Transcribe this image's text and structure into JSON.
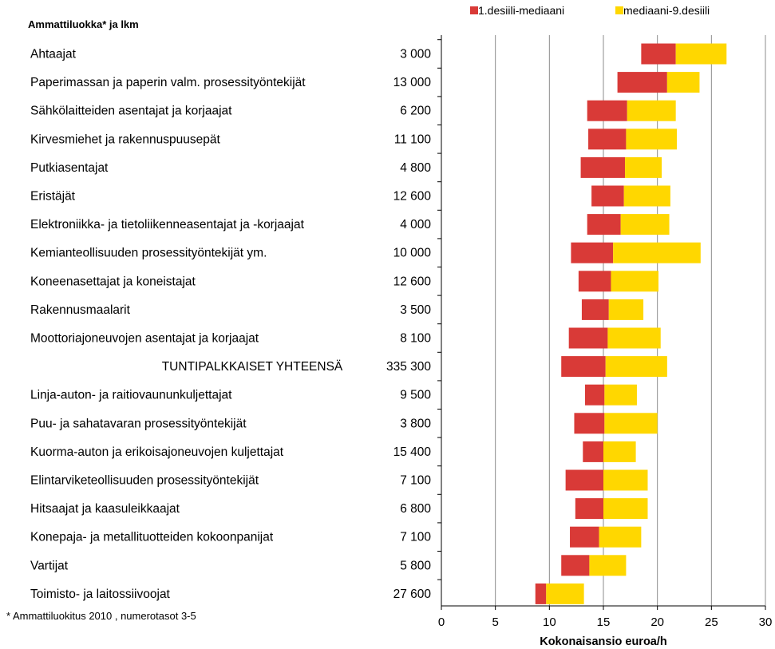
{
  "chart_data": {
    "type": "bar",
    "stacked": "floating-range",
    "header": "Ammattiluokka* ja  lkm",
    "xlabel": "Kokonaisansio euroa/h",
    "xlim": [
      0,
      30
    ],
    "xticks": [
      0,
      5,
      10,
      15,
      20,
      25,
      30
    ],
    "grid": true,
    "legend_position": "top-right",
    "footnote": "* Ammattiluokitus 2010 , numerotasot 3-5",
    "series": [
      {
        "name": "1.desiili-mediaani",
        "color": "#d93a37"
      },
      {
        "name": "mediaani-9.desiili",
        "color": "#ffd700"
      }
    ],
    "rows": [
      {
        "label": "Ahtaajat",
        "count": "3 000",
        "d1": 18.5,
        "median": 21.7,
        "d9": 26.4
      },
      {
        "label": "Paperimassan ja paperin valm. prosessityöntekijät",
        "count": "13 000",
        "d1": 16.3,
        "median": 20.9,
        "d9": 23.9
      },
      {
        "label": "Sähkölaitteiden asentajat ja korjaajat",
        "count": "6 200",
        "d1": 13.5,
        "median": 17.2,
        "d9": 21.7
      },
      {
        "label": "Kirvesmiehet ja rakennuspuusepät",
        "count": "11 100",
        "d1": 13.6,
        "median": 17.1,
        "d9": 21.8
      },
      {
        "label": "Putkiasentajat",
        "count": "4 800",
        "d1": 12.9,
        "median": 17.0,
        "d9": 20.4
      },
      {
        "label": "Eristäjät",
        "count": "12 600",
        "d1": 13.9,
        "median": 16.9,
        "d9": 21.2
      },
      {
        "label": "Elektroniikka- ja tietoliikenneasentajat ja -korjaajat",
        "count": "4 000",
        "d1": 13.5,
        "median": 16.6,
        "d9": 21.1
      },
      {
        "label": "Kemianteollisuuden prosessityöntekijät ym.",
        "count": "10 000",
        "d1": 12.0,
        "median": 15.9,
        "d9": 24.0
      },
      {
        "label": "Koneenasettajat ja koneistajat",
        "count": "12 600",
        "d1": 12.7,
        "median": 15.7,
        "d9": 20.1
      },
      {
        "label": "Rakennusmaalarit",
        "count": "3 500",
        "d1": 13.0,
        "median": 15.5,
        "d9": 18.7
      },
      {
        "label": "Moottoriajoneuvojen asentajat ja korjaajat",
        "count": "8 100",
        "d1": 11.8,
        "median": 15.4,
        "d9": 20.3
      },
      {
        "label": "TUNTIPALKKAISET YHTEENSÄ",
        "count": "335 300",
        "d1": 11.1,
        "median": 15.2,
        "d9": 20.9
      },
      {
        "label": "Linja-auton- ja raitiovaununkuljettajat",
        "count": "9 500",
        "d1": 13.3,
        "median": 15.1,
        "d9": 18.1
      },
      {
        "label": "Puu- ja sahatavaran prosessityöntekijät",
        "count": "3 800",
        "d1": 12.3,
        "median": 15.1,
        "d9": 20.0
      },
      {
        "label": "Kuorma-auton ja erikoisajoneuvojen kuljettajat",
        "count": "15 400",
        "d1": 13.1,
        "median": 15.0,
        "d9": 18.0
      },
      {
        "label": "Elintarviketeollisuuden prosessityöntekijät",
        "count": "7 100",
        "d1": 11.5,
        "median": 15.0,
        "d9": 19.1
      },
      {
        "label": "Hitsaajat ja kaasuleikkaajat",
        "count": "6 800",
        "d1": 12.4,
        "median": 15.0,
        "d9": 19.1
      },
      {
        "label": "Konepaja- ja metallituotteiden kokoonpanijat",
        "count": "7 100",
        "d1": 11.9,
        "median": 14.6,
        "d9": 18.5
      },
      {
        "label": "Vartijat",
        "count": "5 800",
        "d1": 11.1,
        "median": 13.7,
        "d9": 17.1
      },
      {
        "label": "Toimisto- ja laitossiivoojat",
        "count": "27 600",
        "d1": 8.7,
        "median": 9.7,
        "d9": 13.2
      }
    ]
  }
}
